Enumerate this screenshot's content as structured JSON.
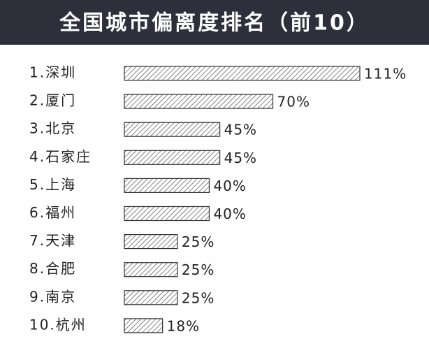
{
  "chart_data": {
    "type": "bar",
    "orientation": "horizontal",
    "title": "全国城市偏离度排名（前10）",
    "categories": [
      "1.深圳",
      "2.厦门",
      "3.北京",
      "4.石家庄",
      "5.上海",
      "6.福州",
      "7.天津",
      "8.合肥",
      "9.南京",
      "10.杭州"
    ],
    "values": [
      111,
      70,
      45,
      45,
      40,
      40,
      25,
      25,
      25,
      18
    ],
    "value_labels": [
      "111%",
      "70%",
      "45%",
      "45%",
      "40%",
      "40%",
      "25%",
      "25%",
      "25%",
      "18%"
    ],
    "color": "#333333"
  }
}
